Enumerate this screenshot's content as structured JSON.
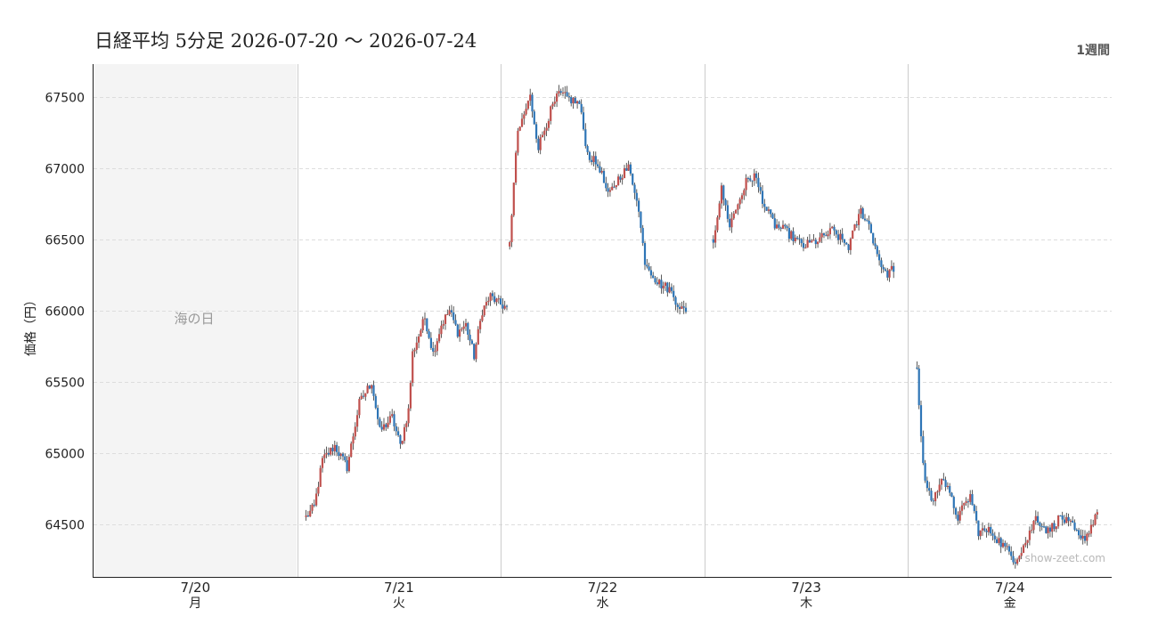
{
  "header": {
    "title": "日経平均 5分足  2026-07-20 〜 2026-07-24",
    "period_label": "1週間"
  },
  "watermark": "show-zeet.com",
  "colors": {
    "up": "#c0504d",
    "down": "#2e75b6",
    "wick": "#333333",
    "holiday_bg": "#f4f4f4",
    "grid": "#dddddd"
  },
  "chart_data": {
    "type": "candlestick",
    "interval": "5分足",
    "ylabel": "価格（円）",
    "ylim": [
      64130,
      67730
    ],
    "yticks": [
      64500,
      65000,
      65500,
      66000,
      66500,
      67000,
      67500
    ],
    "grid": true,
    "days": [
      {
        "date": "7/20",
        "weekday": "月",
        "holiday": true,
        "holiday_label": "海の日"
      },
      {
        "date": "7/21",
        "weekday": "火",
        "holiday": false,
        "open_price": 64550,
        "path": [
          [
            0,
            64550
          ],
          [
            4,
            64620
          ],
          [
            8,
            64950
          ],
          [
            14,
            65050
          ],
          [
            20,
            64900
          ],
          [
            26,
            65350
          ],
          [
            32,
            65500
          ],
          [
            36,
            65150
          ],
          [
            42,
            65250
          ],
          [
            46,
            65050
          ],
          [
            50,
            65300
          ],
          [
            52,
            65700
          ],
          [
            58,
            65950
          ],
          [
            62,
            65700
          ],
          [
            66,
            65900
          ],
          [
            70,
            66000
          ],
          [
            74,
            65850
          ],
          [
            78,
            65900
          ],
          [
            82,
            65680
          ],
          [
            86,
            66000
          ],
          [
            90,
            66100
          ],
          [
            94,
            66050
          ],
          [
            98,
            66020
          ]
        ]
      },
      {
        "date": "7/22",
        "weekday": "水",
        "holiday": false,
        "open_price": 66450,
        "path": [
          [
            0,
            66450
          ],
          [
            2,
            66900
          ],
          [
            4,
            67250
          ],
          [
            10,
            67500
          ],
          [
            14,
            67150
          ],
          [
            20,
            67400
          ],
          [
            24,
            67520
          ],
          [
            30,
            67480
          ],
          [
            34,
            67450
          ],
          [
            38,
            67100
          ],
          [
            44,
            67000
          ],
          [
            48,
            66800
          ],
          [
            54,
            66950
          ],
          [
            58,
            67000
          ],
          [
            62,
            66800
          ],
          [
            66,
            66350
          ],
          [
            72,
            66200
          ],
          [
            78,
            66150
          ],
          [
            82,
            66050
          ],
          [
            86,
            65980
          ]
        ]
      },
      {
        "date": "7/23",
        "weekday": "木",
        "holiday": false,
        "open_price": 66500,
        "path": [
          [
            0,
            66500
          ],
          [
            4,
            66850
          ],
          [
            8,
            66600
          ],
          [
            16,
            66900
          ],
          [
            20,
            66950
          ],
          [
            26,
            66700
          ],
          [
            30,
            66600
          ],
          [
            36,
            66550
          ],
          [
            44,
            66450
          ],
          [
            52,
            66500
          ],
          [
            58,
            66560
          ],
          [
            66,
            66450
          ],
          [
            72,
            66700
          ],
          [
            76,
            66600
          ],
          [
            80,
            66400
          ],
          [
            84,
            66250
          ],
          [
            88,
            66300
          ]
        ]
      },
      {
        "date": "7/24",
        "weekday": "金",
        "holiday": false,
        "open_price": 65600,
        "path": [
          [
            0,
            65600
          ],
          [
            2,
            65100
          ],
          [
            4,
            64800
          ],
          [
            8,
            64650
          ],
          [
            12,
            64850
          ],
          [
            16,
            64700
          ],
          [
            20,
            64550
          ],
          [
            26,
            64700
          ],
          [
            30,
            64450
          ],
          [
            36,
            64450
          ],
          [
            42,
            64350
          ],
          [
            48,
            64250
          ],
          [
            54,
            64400
          ],
          [
            58,
            64550
          ],
          [
            64,
            64450
          ],
          [
            70,
            64550
          ],
          [
            76,
            64480
          ],
          [
            80,
            64380
          ],
          [
            84,
            64450
          ],
          [
            88,
            64600
          ]
        ]
      }
    ]
  }
}
